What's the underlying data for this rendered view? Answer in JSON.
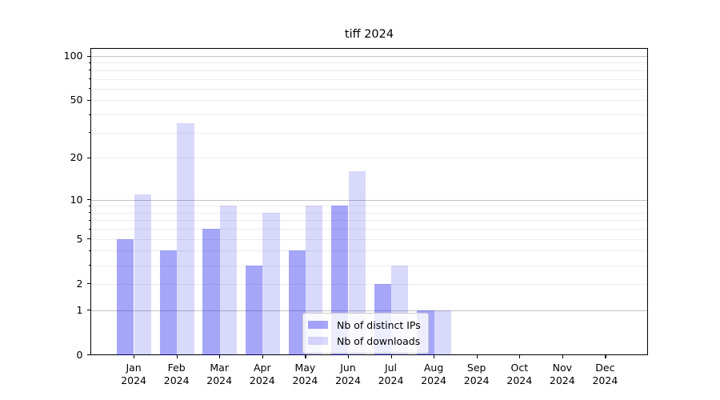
{
  "chart_data": {
    "type": "bar",
    "title": "tiff 2024",
    "categories": [
      "Jan 2024",
      "Feb 2024",
      "Mar 2024",
      "Apr 2024",
      "May 2024",
      "Jun 2024",
      "Jul 2024",
      "Aug 2024",
      "Sep 2024",
      "Oct 2024",
      "Nov 2024",
      "Dec 2024"
    ],
    "series": [
      {
        "name": "Nb of distinct IPs",
        "color": "rgba(0,0,238,0.35)",
        "values": [
          5,
          4,
          6,
          3,
          4,
          9,
          2,
          1,
          0,
          0,
          0,
          0
        ]
      },
      {
        "name": "Nb of downloads",
        "color": "rgba(0,0,238,0.15)",
        "values": [
          11,
          35,
          9,
          8,
          9,
          16,
          3,
          1,
          0,
          0,
          0,
          0
        ]
      }
    ],
    "xlabel": "",
    "ylabel": "",
    "yscale": "log1p",
    "ylim": [
      0,
      112
    ],
    "ytick_labels": [
      0,
      1,
      2,
      5,
      10,
      20,
      50,
      100
    ],
    "ymajor_gridlines": [
      1,
      10,
      100
    ],
    "yminor_gridlines": [
      2,
      3,
      4,
      5,
      6,
      7,
      8,
      9,
      20,
      30,
      40,
      50,
      60,
      70,
      80,
      90
    ],
    "grid": true,
    "legend_position": "lower center",
    "colors": {
      "bar_dark": "rgba(0,0,238,0.35)",
      "bar_light": "rgba(0,0,238,0.15)",
      "grid_minor": "#ededed",
      "grid_major": "#c3c3c3",
      "axis": "#000000",
      "legend_border": "#cccccc"
    }
  }
}
